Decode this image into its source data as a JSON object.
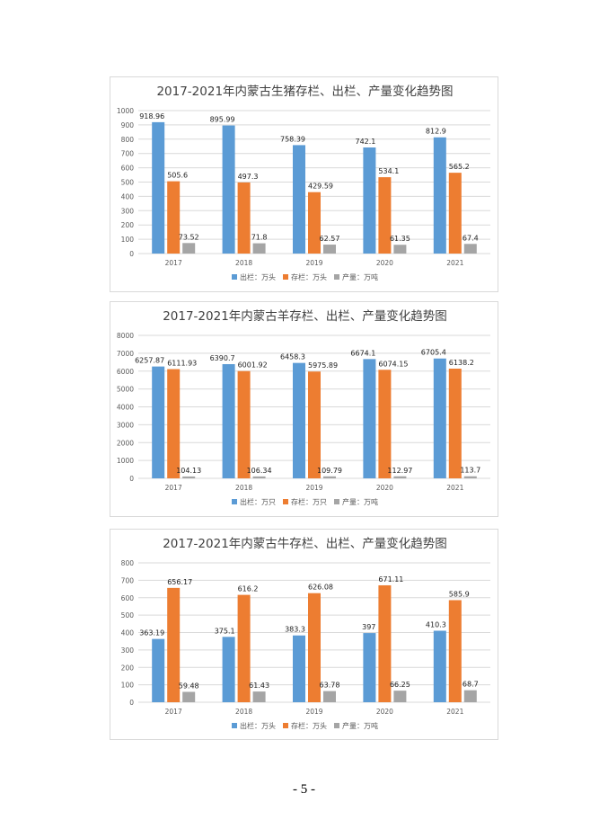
{
  "colors": {
    "out": "#5b9bd5",
    "stock": "#ed7d31",
    "output": "#a5a5a5",
    "grid": "#d9d9d9",
    "text": "#595959"
  },
  "chart_data": [
    {
      "type": "bar",
      "title": "2017-2021年内蒙古生猪存栏、出栏、产量变化趋势图",
      "categories": [
        "2017",
        "2018",
        "2019",
        "2020",
        "2021"
      ],
      "ylim": [
        0,
        1000
      ],
      "yticks": [
        0,
        100,
        200,
        300,
        400,
        500,
        600,
        700,
        800,
        900,
        1000
      ],
      "grid": true,
      "legend_position": "bottom",
      "series": [
        {
          "name": "出栏：万头",
          "values": [
            918.96,
            895.99,
            758.39,
            742.1,
            812.9
          ]
        },
        {
          "name": "存栏：万头",
          "values": [
            505.6,
            497.3,
            429.59,
            534.1,
            565.2
          ]
        },
        {
          "name": "产量：万吨",
          "values": [
            73.52,
            71.8,
            62.57,
            61.35,
            67.4
          ]
        }
      ]
    },
    {
      "type": "bar",
      "title": "2017-2021年内蒙古羊存栏、出栏、产量变化趋势图",
      "categories": [
        "2017",
        "2018",
        "2019",
        "2020",
        "2021"
      ],
      "ylim": [
        0,
        8000
      ],
      "yticks": [
        0,
        1000,
        2000,
        3000,
        4000,
        5000,
        6000,
        7000,
        8000
      ],
      "grid": true,
      "legend_position": "bottom",
      "series": [
        {
          "name": "出栏：万只",
          "values": [
            6257.87,
            6390.7,
            6458.3,
            6674.1,
            6705.4
          ]
        },
        {
          "name": "存栏：万只",
          "values": [
            6111.93,
            6001.92,
            5975.89,
            6074.15,
            6138.2
          ]
        },
        {
          "name": "产量：万吨",
          "values": [
            104.13,
            106.34,
            109.79,
            112.97,
            113.7
          ]
        }
      ]
    },
    {
      "type": "bar",
      "title": "2017-2021年内蒙古牛存栏、出栏、产量变化趋势图",
      "categories": [
        "2017",
        "2018",
        "2019",
        "2020",
        "2021"
      ],
      "ylim": [
        0,
        800
      ],
      "yticks": [
        0,
        100,
        200,
        300,
        400,
        500,
        600,
        700,
        800
      ],
      "grid": true,
      "legend_position": "bottom",
      "series": [
        {
          "name": "出栏：万头",
          "values": [
            363.19,
            375.1,
            383.3,
            397,
            410.3
          ]
        },
        {
          "name": "存栏：万头",
          "values": [
            656.17,
            616.2,
            626.08,
            671.11,
            585.9
          ]
        },
        {
          "name": "产量：万吨",
          "values": [
            59.48,
            61.43,
            63.78,
            66.25,
            68.7
          ]
        }
      ]
    }
  ],
  "page": {
    "number": "- 5 -"
  }
}
